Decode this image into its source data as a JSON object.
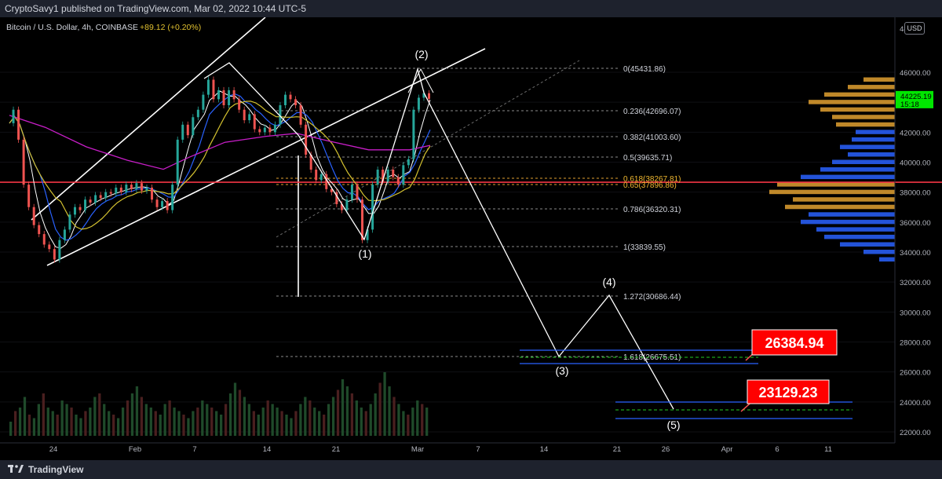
{
  "header": {
    "published_line": "CryptoSavy1 published on TradingView.com, Mar 02, 2022 10:44 UTC-5"
  },
  "symbol_line": {
    "name": "Bitcoin / U.S. Dollar, 4h, COINBASE",
    "change": "+89.12 (+0.20%)"
  },
  "currency_button": "USD",
  "footer": {
    "brand": "TradingView"
  },
  "colors": {
    "background": "#000000",
    "support_line": "#f23645",
    "target_label_bg": "#ff0000",
    "last_price_bg": "#00e600",
    "volume_profile_up": "#2962ff",
    "volume_profile_down": "#e0a030",
    "ma_magenta": "#c81ec8",
    "ma_yellow": "#d4c230"
  },
  "chart_data": {
    "type": "line",
    "symbol": "Bitcoin / U.S. Dollar",
    "timeframe": "4h",
    "exchange": "COINBASE",
    "x_ticks": [
      "24",
      "Feb",
      "7",
      "14",
      "21",
      "Mar",
      "7",
      "14",
      "21",
      "26",
      "Apr",
      "6",
      "11"
    ],
    "y_ticks": [
      22000,
      24000,
      26000,
      28000,
      30000,
      32000,
      34000,
      36000,
      38000,
      40000,
      42000,
      44000,
      46000,
      48000
    ],
    "y_top_tick_label": "48",
    "ylim": [
      21600,
      48600
    ],
    "last_price": "44225.19",
    "last_price_countdown": "15:18",
    "support_level": 38400,
    "fib_levels": [
      {
        "label": "0(45431.86)",
        "value": 45431.86
      },
      {
        "label": "0.236(42696.07)",
        "value": 42696.07
      },
      {
        "label": "0.382(41003.60)",
        "value": 41003.6
      },
      {
        "label": "0.5(39635.71)",
        "value": 39635.71
      },
      {
        "label": "0.618(38267.81)",
        "value": 38267.81,
        "highlight": true
      },
      {
        "label": "0.65(37896.86)",
        "value": 37896.86,
        "highlight": true
      },
      {
        "label": "0.786(36320.31)",
        "value": 36320.31
      },
      {
        "label": "1(33839.55)",
        "value": 33839.55
      },
      {
        "label": "1.272(30686.44)",
        "value": 30686.44
      },
      {
        "label": "1.618(26675.51)",
        "value": 26675.51
      }
    ],
    "wave_labels": [
      {
        "label": "(1)",
        "date": "Feb 24",
        "price": 34300
      },
      {
        "label": "(2)",
        "date": "Mar 1",
        "price": 45500
      },
      {
        "label": "(3)",
        "date": "Mar 15",
        "price": 26700
      },
      {
        "label": "(4)",
        "date": "Mar 21",
        "price": 30700
      },
      {
        "label": "(5)",
        "date": "Mar 27",
        "price": 23200
      }
    ],
    "targets": [
      {
        "label": "26384.94",
        "value": 26384.94
      },
      {
        "label": "23129.23",
        "value": 23129.23
      }
    ],
    "price_path": [
      [
        0,
        42600
      ],
      [
        2,
        43500
      ],
      [
        4,
        41500
      ],
      [
        6,
        38500
      ],
      [
        8,
        37000
      ],
      [
        10,
        35800
      ],
      [
        12,
        35200
      ],
      [
        14,
        34500
      ],
      [
        16,
        34200
      ],
      [
        18,
        33500
      ],
      [
        20,
        34800
      ],
      [
        22,
        35500
      ],
      [
        24,
        36500
      ],
      [
        26,
        37000
      ],
      [
        28,
        36800
      ],
      [
        30,
        37500
      ],
      [
        32,
        37300
      ],
      [
        34,
        37800
      ],
      [
        36,
        37600
      ],
      [
        38,
        38000
      ],
      [
        40,
        37900
      ],
      [
        42,
        38300
      ],
      [
        44,
        38000
      ],
      [
        46,
        38500
      ],
      [
        48,
        38200
      ],
      [
        50,
        38600
      ],
      [
        52,
        38100
      ],
      [
        54,
        38300
      ],
      [
        56,
        37500
      ],
      [
        58,
        37000
      ],
      [
        60,
        37400
      ],
      [
        62,
        36800
      ],
      [
        64,
        38500
      ],
      [
        66,
        41500
      ],
      [
        68,
        42500
      ],
      [
        70,
        41800
      ],
      [
        72,
        43000
      ],
      [
        74,
        43500
      ],
      [
        76,
        44500
      ],
      [
        78,
        45500
      ],
      [
        80,
        44200
      ],
      [
        82,
        44800
      ],
      [
        84,
        43800
      ],
      [
        86,
        44800
      ],
      [
        88,
        44200
      ],
      [
        90,
        43500
      ],
      [
        92,
        42800
      ],
      [
        94,
        43200
      ],
      [
        96,
        42200
      ],
      [
        98,
        42000
      ],
      [
        100,
        42300
      ],
      [
        102,
        42000
      ],
      [
        104,
        42500
      ],
      [
        106,
        43800
      ],
      [
        108,
        44500
      ],
      [
        110,
        44200
      ],
      [
        112,
        43800
      ],
      [
        114,
        42500
      ],
      [
        116,
        40500
      ],
      [
        118,
        39500
      ],
      [
        120,
        38800
      ],
      [
        122,
        39200
      ],
      [
        124,
        38200
      ],
      [
        126,
        38000
      ],
      [
        128,
        37200
      ],
      [
        130,
        36800
      ],
      [
        132,
        37500
      ],
      [
        134,
        38500
      ],
      [
        136,
        37500
      ],
      [
        138,
        34800
      ],
      [
        140,
        35500
      ],
      [
        142,
        38500
      ],
      [
        144,
        39500
      ],
      [
        146,
        38700
      ],
      [
        148,
        39500
      ],
      [
        150,
        39000
      ],
      [
        152,
        38500
      ],
      [
        154,
        39800
      ],
      [
        156,
        40200
      ],
      [
        158,
        43500
      ],
      [
        160,
        44300
      ],
      [
        162,
        44600
      ],
      [
        164,
        44225
      ]
    ],
    "wave_path": [
      [
        0,
        23.0,
        "Jan 23",
        36700
      ],
      [
        1,
        29.0,
        "Feb 9",
        46000
      ],
      [
        2,
        38.0,
        "Feb 24",
        34300
      ],
      [
        3,
        44.0,
        "Mar 1",
        45500
      ],
      [
        4,
        56.0,
        "Mar 15",
        26700
      ],
      [
        5,
        61.0,
        "Mar 21",
        30700
      ],
      [
        6,
        66.0,
        "Mar 27",
        23200
      ]
    ],
    "volume_profile": [
      [
        45500,
        40,
        "down"
      ],
      [
        45000,
        60,
        "down"
      ],
      [
        44500,
        90,
        "down"
      ],
      [
        44000,
        110,
        "down"
      ],
      [
        43500,
        95,
        "down"
      ],
      [
        43000,
        80,
        "down"
      ],
      [
        42500,
        75,
        "down"
      ],
      [
        42000,
        50,
        "up"
      ],
      [
        41500,
        55,
        "up"
      ],
      [
        41000,
        70,
        "up"
      ],
      [
        40500,
        60,
        "up"
      ],
      [
        40000,
        80,
        "up"
      ],
      [
        39500,
        95,
        "up"
      ],
      [
        39000,
        120,
        "up"
      ],
      [
        38500,
        150,
        "down"
      ],
      [
        38000,
        160,
        "down"
      ],
      [
        37500,
        130,
        "down"
      ],
      [
        37000,
        140,
        "down"
      ],
      [
        36500,
        110,
        "up"
      ],
      [
        36000,
        120,
        "up"
      ],
      [
        35500,
        100,
        "up"
      ],
      [
        35000,
        90,
        "up"
      ],
      [
        34500,
        70,
        "up"
      ],
      [
        34000,
        40,
        "up"
      ],
      [
        33500,
        20,
        "up"
      ]
    ],
    "volume_bars": [
      20,
      35,
      40,
      55,
      30,
      25,
      45,
      60,
      40,
      35,
      30,
      50,
      45,
      40,
      30,
      25,
      35,
      40,
      55,
      60,
      45,
      35,
      30,
      25,
      40,
      50,
      60,
      70,
      55,
      45,
      40,
      35,
      30,
      45,
      50,
      40,
      35,
      30,
      25,
      35,
      40,
      50,
      45,
      40,
      35,
      30,
      45,
      60,
      75,
      65,
      55,
      45,
      35,
      30,
      40,
      50,
      45,
      40,
      35,
      30,
      25,
      35,
      45,
      55,
      50,
      40,
      35,
      30,
      45,
      55,
      65,
      80,
      70,
      60,
      50,
      40,
      35,
      45,
      60,
      75,
      90,
      70,
      55,
      45,
      35,
      30,
      40,
      50,
      45,
      40
    ]
  }
}
